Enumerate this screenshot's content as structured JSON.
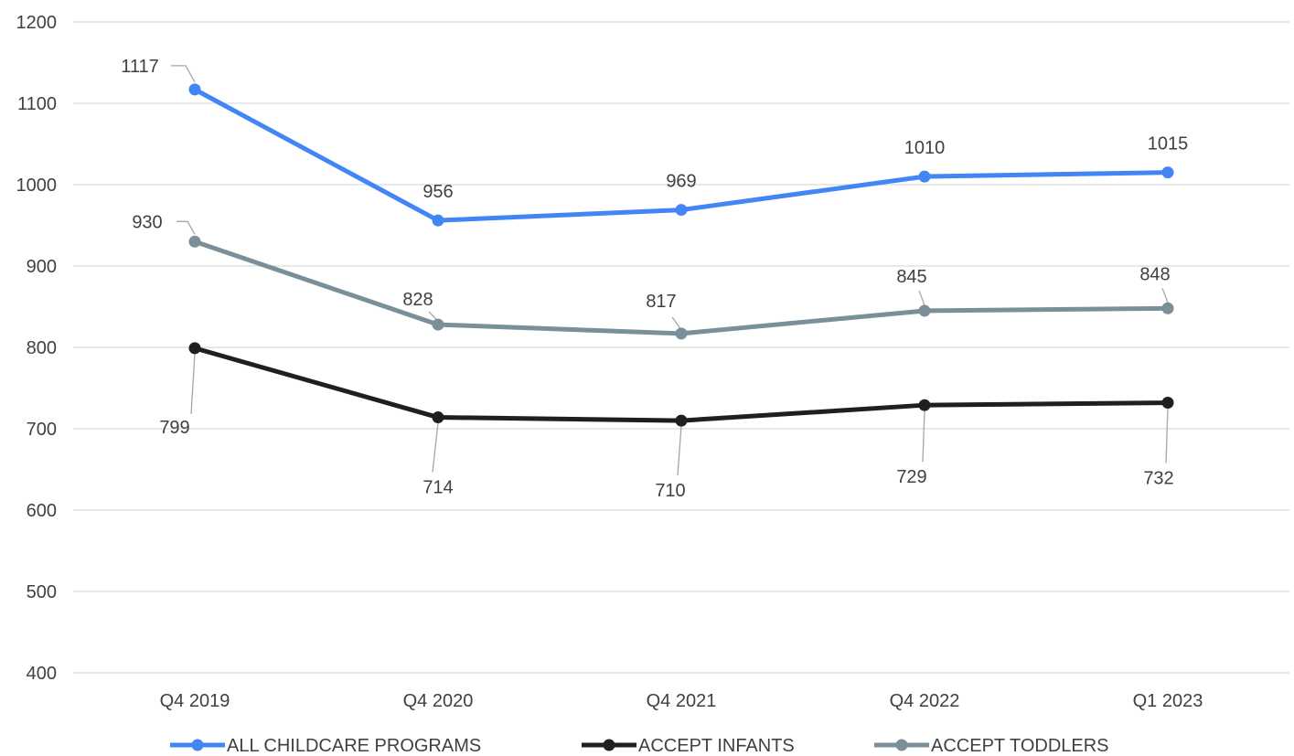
{
  "chart_data": {
    "type": "line",
    "title": "",
    "xlabel": "",
    "ylabel": "",
    "categories": [
      "Q4 2019",
      "Q4 2020",
      "Q4 2021",
      "Q4 2022",
      "Q1 2023"
    ],
    "ylim": [
      400,
      1200
    ],
    "yticks": [
      "400",
      "500",
      "600",
      "700",
      "800",
      "900",
      "1000",
      "1100",
      "1200"
    ],
    "grid": "horizontal",
    "legend_position": "bottom",
    "series": [
      {
        "name": "ALL CHILDCARE PROGRAMS",
        "color": "#4285f4",
        "values": [
          1117,
          956,
          969,
          1010,
          1015
        ],
        "labels": [
          "1117",
          "956",
          "969",
          "1010",
          "1015"
        ]
      },
      {
        "name": "ACCEPT INFANTS",
        "color": "#1f1f1f",
        "values": [
          799,
          714,
          710,
          729,
          732
        ],
        "labels": [
          "799",
          "714",
          "710",
          "729",
          "732"
        ]
      },
      {
        "name": "ACCEPT TODDLERS",
        "color": "#7a8f99",
        "values": [
          930,
          828,
          817,
          845,
          848
        ],
        "labels": [
          "930",
          "828",
          "817",
          "845",
          "848"
        ]
      }
    ]
  }
}
